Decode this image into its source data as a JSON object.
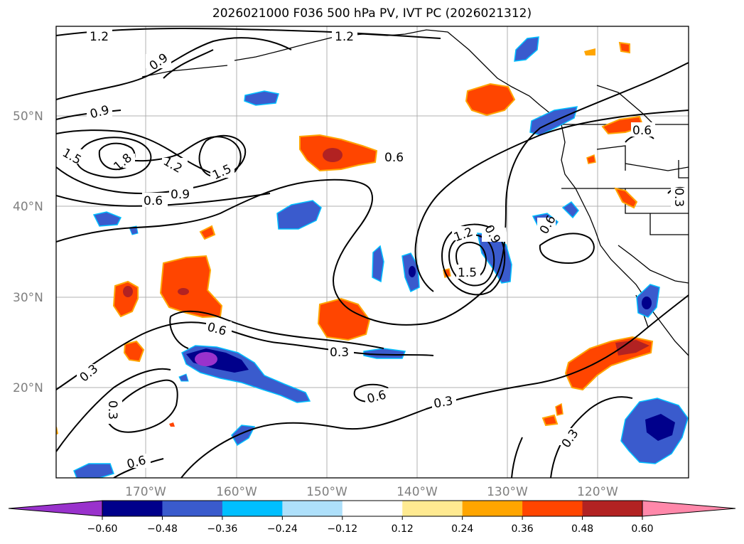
{
  "title": "2026021000 F036 500 hPa PV, IVT PC (2026021312)",
  "map": {
    "lat_labels": [
      "50°N",
      "40°N",
      "30°N",
      "20°N"
    ],
    "lon_labels": [
      "170°W",
      "160°W",
      "150°W",
      "140°W",
      "130°W",
      "120°W"
    ],
    "contour_labels": [
      "1.2",
      "1.2",
      "0.9",
      "0.9",
      "1.5",
      "1.8",
      "1.2",
      "1.5",
      "0.9",
      "0.6",
      "0.6",
      "1.2",
      "0.9",
      "1.5",
      "0.6",
      "0.6",
      "0.3",
      "0.3",
      "0.3",
      "0.6",
      "0.3",
      "0.3",
      "0.6",
      "0.6",
      "0.3"
    ]
  },
  "colorbar": {
    "ticks": [
      "−0.60",
      "−0.48",
      "−0.36",
      "−0.24",
      "−0.12",
      "0.12",
      "0.24",
      "0.36",
      "0.48",
      "0.60"
    ],
    "colors": {
      "under": "#9932cc",
      "bins": [
        "#00008b",
        "#3a5bcd",
        "#00bfff",
        "#aee0fb",
        "#ffffff",
        "#ffea91",
        "#ffa500",
        "#ff4500",
        "#b22222"
      ],
      "over": "#ff88aa"
    }
  }
}
